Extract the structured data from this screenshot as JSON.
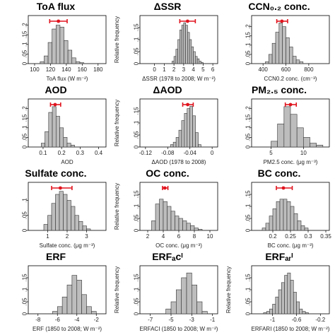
{
  "colors": {
    "bar_fill": "#bdbdbd",
    "bar_edge": "#333333",
    "interval": "#e0141e"
  },
  "chart_data": [
    {
      "type": "bar",
      "title": "ToA flux",
      "xlabel": "ToA flux (W m⁻²)",
      "ylabel": "",
      "xlim": [
        92,
        190
      ],
      "xticks": [
        100,
        120,
        140,
        160,
        180
      ],
      "ylim": [
        0,
        0.25
      ],
      "yticks": [
        0,
        0.05,
        0.1,
        0.15,
        0.2
      ],
      "bins": [
        [
          107,
          112
        ],
        [
          112,
          117
        ],
        [
          117,
          122
        ],
        [
          122,
          127
        ],
        [
          127,
          132
        ],
        [
          132,
          137
        ],
        [
          137,
          142
        ],
        [
          142,
          147
        ],
        [
          147,
          152
        ],
        [
          152,
          157
        ],
        [
          157,
          162
        ]
      ],
      "values": [
        0.01,
        0.04,
        0.11,
        0.18,
        0.2,
        0.19,
        0.12,
        0.07,
        0.03,
        0.01,
        0.005
      ],
      "interval": {
        "low": 119,
        "mid": 130,
        "high": 141
      }
    },
    {
      "type": "bar",
      "title": "ΔSSR",
      "xlabel": "ΔSSR (1978 to 2008; W m⁻²)",
      "ylabel": "Relative frequency",
      "xlim": [
        -1.5,
        6.5
      ],
      "xticks": [
        0,
        1,
        2,
        3,
        4,
        5,
        6
      ],
      "ylim": [
        0,
        0.2
      ],
      "yticks": [
        0,
        0.05,
        0.1,
        0.15
      ],
      "bins": [
        [
          1.8,
          2.0
        ],
        [
          2.0,
          2.2
        ],
        [
          2.2,
          2.4
        ],
        [
          2.4,
          2.6
        ],
        [
          2.6,
          2.8
        ],
        [
          2.8,
          3.0
        ],
        [
          3.0,
          3.2
        ],
        [
          3.2,
          3.4
        ],
        [
          3.4,
          3.6
        ],
        [
          3.6,
          3.8
        ],
        [
          3.8,
          4.0
        ],
        [
          4.0,
          4.2
        ],
        [
          4.2,
          4.4
        ],
        [
          4.4,
          4.6
        ],
        [
          4.6,
          4.8
        ],
        [
          4.8,
          5.0
        ]
      ],
      "values": [
        0.01,
        0.03,
        0.06,
        0.1,
        0.14,
        0.16,
        0.17,
        0.16,
        0.13,
        0.1,
        0.07,
        0.05,
        0.03,
        0.02,
        0.01,
        0.005
      ],
      "interval": {
        "low": 2.6,
        "mid": 3.4,
        "high": 4.2
      }
    },
    {
      "type": "bar",
      "title": "CCN₀.₂ conc.",
      "xlabel": "CCN0.2 conc. (cm⁻³)",
      "ylabel": "",
      "xlim": [
        300,
        980
      ],
      "xticks": [
        400,
        600,
        800
      ],
      "ylim": [
        0,
        0.26
      ],
      "yticks": [
        0,
        0.05,
        0.1,
        0.15,
        0.2
      ],
      "bins": [
        [
          420,
          450
        ],
        [
          450,
          480
        ],
        [
          480,
          510
        ],
        [
          510,
          540
        ],
        [
          540,
          570
        ],
        [
          570,
          600
        ],
        [
          600,
          630
        ],
        [
          630,
          660
        ],
        [
          660,
          690
        ],
        [
          690,
          720
        ],
        [
          720,
          750
        ]
      ],
      "values": [
        0.01,
        0.05,
        0.11,
        0.17,
        0.22,
        0.2,
        0.14,
        0.09,
        0.04,
        0.02,
        0.01
      ],
      "interval": {
        "low": 520,
        "mid": 565,
        "high": 615
      }
    },
    {
      "type": "bar",
      "title": "AOD",
      "xlabel": "AOD",
      "ylabel": "",
      "xlim": [
        0.02,
        0.44
      ],
      "xticks": [
        0.1,
        0.2,
        0.3,
        0.4
      ],
      "ylim": [
        0,
        0.25
      ],
      "yticks": [
        0,
        0.05,
        0.1,
        0.15,
        0.2
      ],
      "bins": [
        [
          0.09,
          0.11
        ],
        [
          0.11,
          0.13
        ],
        [
          0.13,
          0.15
        ],
        [
          0.15,
          0.17
        ],
        [
          0.17,
          0.19
        ],
        [
          0.19,
          0.21
        ],
        [
          0.21,
          0.23
        ],
        [
          0.23,
          0.25
        ],
        [
          0.25,
          0.27
        ]
      ],
      "values": [
        0.02,
        0.08,
        0.18,
        0.21,
        0.16,
        0.1,
        0.05,
        0.02,
        0.01
      ],
      "interval": {
        "low": 0.14,
        "mid": 0.165,
        "high": 0.195
      }
    },
    {
      "type": "bar",
      "title": "ΔAOD",
      "xlabel": "ΔAOD (1978 to 2008)",
      "ylabel": "Relative frequency",
      "xlim": [
        -0.13,
        0.01
      ],
      "xticks": [
        -0.12,
        -0.08,
        -0.04,
        0
      ],
      "ylim": [
        0,
        0.2
      ],
      "yticks": [
        0,
        0.05,
        0.1,
        0.15
      ],
      "bins": [
        [
          -0.075,
          -0.07
        ],
        [
          -0.07,
          -0.065
        ],
        [
          -0.065,
          -0.06
        ],
        [
          -0.06,
          -0.055
        ],
        [
          -0.055,
          -0.05
        ],
        [
          -0.05,
          -0.045
        ],
        [
          -0.045,
          -0.04
        ],
        [
          -0.04,
          -0.035
        ],
        [
          -0.035,
          -0.03
        ],
        [
          -0.03,
          -0.025
        ],
        [
          -0.025,
          -0.02
        ]
      ],
      "values": [
        0.01,
        0.02,
        0.04,
        0.07,
        0.11,
        0.14,
        0.16,
        0.17,
        0.13,
        0.06,
        0.01
      ],
      "interval": {
        "low": -0.053,
        "mid": -0.044,
        "high": -0.034
      }
    },
    {
      "type": "bar",
      "title": "PM₂.₅ conc.",
      "xlabel": "PM2.5 conc. (μg m⁻³)",
      "ylabel": "",
      "xlim": [
        2,
        14
      ],
      "xticks": [
        5,
        10
      ],
      "ylim": [
        0,
        0.25
      ],
      "yticks": [
        0,
        0.05,
        0.1,
        0.15,
        0.2
      ],
      "bins": [
        [
          5,
          6
        ],
        [
          6,
          7
        ],
        [
          7,
          8
        ],
        [
          8,
          9
        ],
        [
          9,
          10
        ],
        [
          10,
          11
        ],
        [
          11,
          12
        ],
        [
          12,
          13
        ]
      ],
      "values": [
        0.03,
        0.12,
        0.21,
        0.17,
        0.1,
        0.05,
        0.02,
        0.01
      ],
      "interval": {
        "low": 7.2,
        "mid": 8.0,
        "high": 8.9
      }
    },
    {
      "type": "bar",
      "title": "Sulfate conc.",
      "xlabel": "Sulfate conc. (μg m⁻³)",
      "ylabel": "",
      "xlim": [
        0,
        4
      ],
      "xticks": [
        1,
        2,
        3
      ],
      "ylim": [
        0,
        0.16
      ],
      "yticks": [
        0,
        0.05,
        0.1
      ],
      "bins": [
        [
          0.8,
          1.0
        ],
        [
          1.0,
          1.2
        ],
        [
          1.2,
          1.4
        ],
        [
          1.4,
          1.6
        ],
        [
          1.6,
          1.8
        ],
        [
          1.8,
          2.0
        ],
        [
          2.0,
          2.2
        ],
        [
          2.2,
          2.4
        ],
        [
          2.4,
          2.6
        ],
        [
          2.6,
          2.8
        ],
        [
          2.8,
          3.0
        ],
        [
          3.0,
          3.2
        ]
      ],
      "values": [
        0.02,
        0.05,
        0.09,
        0.12,
        0.13,
        0.12,
        0.1,
        0.08,
        0.05,
        0.03,
        0.015,
        0.005
      ],
      "interval": {
        "low": 1.2,
        "mid": 1.65,
        "high": 2.25
      }
    },
    {
      "type": "bar",
      "title": "OC conc.",
      "xlabel": "OC conc. (μg m⁻³)",
      "ylabel": "Relative frequency",
      "xlim": [
        1,
        11
      ],
      "xticks": [
        2,
        4,
        6,
        8,
        10
      ],
      "ylim": [
        0,
        0.2
      ],
      "yticks": [
        0,
        0.05,
        0.1,
        0.15
      ],
      "bins": [
        [
          2.5,
          3
        ],
        [
          3,
          3.5
        ],
        [
          3.5,
          4
        ],
        [
          4,
          4.5
        ],
        [
          4.5,
          5
        ],
        [
          5,
          5.5
        ],
        [
          5.5,
          6
        ],
        [
          6,
          6.5
        ],
        [
          6.5,
          7
        ],
        [
          7,
          7.5
        ],
        [
          7.5,
          8
        ],
        [
          8,
          8.5
        ],
        [
          8.5,
          9
        ]
      ],
      "values": [
        0.04,
        0.11,
        0.13,
        0.12,
        0.1,
        0.08,
        0.06,
        0.05,
        0.04,
        0.03,
        0.02,
        0.01,
        0.005
      ],
      "interval": {
        "low": 3.9,
        "mid": 4.2,
        "high": 4.6
      }
    },
    {
      "type": "bar",
      "title": "BC conc.",
      "xlabel": "BC conc. (μg m⁻³)",
      "ylabel": "",
      "xlim": [
        0.14,
        0.36
      ],
      "xticks": [
        0.2,
        0.25,
        0.3,
        0.35
      ],
      "ylim": [
        0,
        0.2
      ],
      "yticks": [
        0,
        0.05,
        0.1,
        0.15
      ],
      "bins": [
        [
          0.17,
          0.18
        ],
        [
          0.18,
          0.19
        ],
        [
          0.19,
          0.2
        ],
        [
          0.2,
          0.21
        ],
        [
          0.21,
          0.22
        ],
        [
          0.22,
          0.23
        ],
        [
          0.23,
          0.24
        ],
        [
          0.24,
          0.25
        ],
        [
          0.25,
          0.26
        ],
        [
          0.26,
          0.27
        ],
        [
          0.27,
          0.28
        ],
        [
          0.28,
          0.29
        ],
        [
          0.29,
          0.3
        ]
      ],
      "values": [
        0.01,
        0.03,
        0.06,
        0.09,
        0.12,
        0.13,
        0.13,
        0.12,
        0.1,
        0.07,
        0.04,
        0.02,
        0.01
      ],
      "interval": {
        "low": 0.21,
        "mid": 0.23,
        "high": 0.255
      }
    },
    {
      "type": "bar",
      "title": "ERF",
      "xlabel": "ERF (1850 to 2008; W m⁻²)",
      "ylabel": "",
      "xlim": [
        -9,
        -1
      ],
      "xticks": [
        -8,
        -6,
        -4,
        -2
      ],
      "ylim": [
        0,
        0.2
      ],
      "yticks": [
        0,
        0.05,
        0.1,
        0.15
      ],
      "bins": [
        [
          -6.5,
          -6
        ],
        [
          -6,
          -5.5
        ],
        [
          -5.5,
          -5
        ],
        [
          -5,
          -4.5
        ],
        [
          -4.5,
          -4
        ],
        [
          -4,
          -3.5
        ],
        [
          -3.5,
          -3
        ],
        [
          -3,
          -2.5
        ],
        [
          -2.5,
          -2
        ]
      ],
      "values": [
        0.01,
        0.03,
        0.07,
        0.12,
        0.16,
        0.14,
        0.08,
        0.03,
        0.01
      ],
      "interval": null
    },
    {
      "type": "bar",
      "title": "ERFₐᴄᴵ",
      "xlabel": "ERFACI (1850 to 2008; W m⁻²)",
      "ylabel": "Relative frequency",
      "xlim": [
        -8,
        -0.5
      ],
      "xticks": [
        -7,
        -5,
        -3,
        -1
      ],
      "ylim": [
        0,
        0.2
      ],
      "yticks": [
        0,
        0.05,
        0.1,
        0.15
      ],
      "bins": [
        [
          -5.5,
          -5
        ],
        [
          -5,
          -4.5
        ],
        [
          -4.5,
          -4
        ],
        [
          -4,
          -3.5
        ],
        [
          -3.5,
          -3
        ],
        [
          -3,
          -2.5
        ],
        [
          -2.5,
          -2
        ],
        [
          -2,
          -1.5
        ]
      ],
      "values": [
        0.02,
        0.05,
        0.1,
        0.15,
        0.17,
        0.12,
        0.05,
        0.01
      ],
      "interval": null
    },
    {
      "type": "bar",
      "title": "ERFₐᵣᴵ",
      "xlabel": "ERFARI (1850 to 2008; W m⁻²)",
      "ylabel": "Relative frequency",
      "xlim": [
        -1.35,
        -0.05
      ],
      "xticks": [
        -1.0,
        -0.6,
        -0.2
      ],
      "ylim": [
        0,
        0.2
      ],
      "yticks": [
        0,
        0.05,
        0.1,
        0.15
      ],
      "bins": [
        [
          -1.15,
          -1.1
        ],
        [
          -1.1,
          -1.05
        ],
        [
          -1.05,
          -1.0
        ],
        [
          -1.0,
          -0.95
        ],
        [
          -0.95,
          -0.9
        ],
        [
          -0.9,
          -0.85
        ],
        [
          -0.85,
          -0.8
        ],
        [
          -0.8,
          -0.75
        ],
        [
          -0.75,
          -0.7
        ],
        [
          -0.7,
          -0.65
        ],
        [
          -0.65,
          -0.6
        ],
        [
          -0.6,
          -0.55
        ],
        [
          -0.55,
          -0.5
        ],
        [
          -0.5,
          -0.45
        ],
        [
          -0.45,
          -0.4
        ]
      ],
      "values": [
        0.005,
        0.01,
        0.02,
        0.04,
        0.07,
        0.1,
        0.13,
        0.16,
        0.17,
        0.14,
        0.09,
        0.05,
        0.02,
        0.01,
        0.005
      ],
      "interval": null
    }
  ]
}
